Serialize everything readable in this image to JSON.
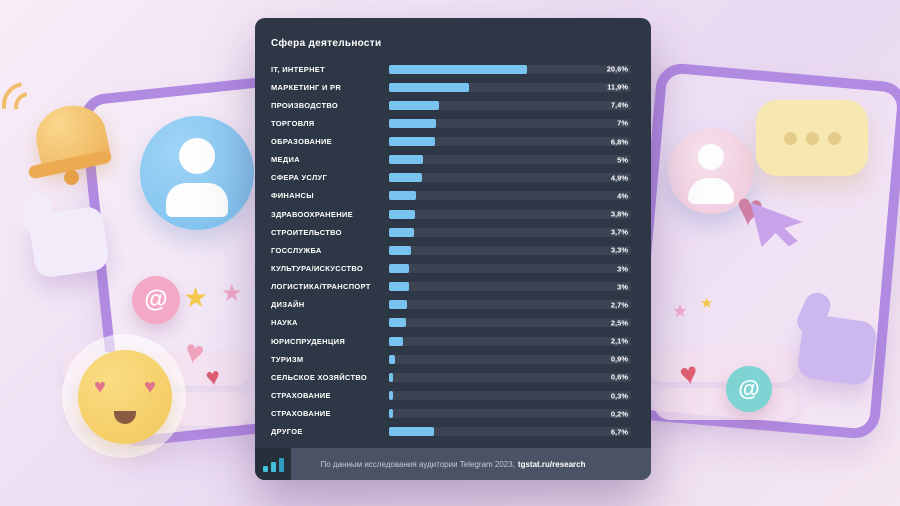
{
  "panel": {
    "title": "Сфера деятельности",
    "footer": {
      "text": "По данным исследования аудитории Telegram 2023,",
      "link": "tgstat.ru/research"
    }
  },
  "chart_data": {
    "type": "bar",
    "orientation": "horizontal",
    "title": "Сфера деятельности",
    "categories": [
      "IT, ИНТЕРНЕТ",
      "МАРКЕТИНГ И PR",
      "ПРОИЗВОДСТВО",
      "ТОРГОВЛЯ",
      "ОБРАЗОВАНИЕ",
      "МЕДИА",
      "СФЕРА УСЛУГ",
      "ФИНАНСЫ",
      "ЗДРАВООХРАНЕНИЕ",
      "СТРОИТЕЛЬСТВО",
      "ГОССЛУЖБА",
      "КУЛЬТУРА/ИСКУССТВО",
      "ЛОГИСТИКА/ТРАНСПОРТ",
      "ДИЗАЙН",
      "НАУКА",
      "ЮРИСПРУДЕНЦИЯ",
      "ТУРИЗМ",
      "СЕЛЬСКОЕ ХОЗЯЙСТВО",
      "СТРАХОВАНИЕ",
      "СТРАХОВАНИЕ",
      "ДРУГОЕ"
    ],
    "values": [
      20.6,
      11.9,
      7.4,
      7,
      6.8,
      5,
      4.9,
      4,
      3.8,
      3.7,
      3.3,
      3,
      3,
      2.7,
      2.5,
      2.1,
      0.9,
      0.6,
      0.3,
      0.2,
      6.7
    ],
    "value_labels": [
      "20,6%",
      "11,9%",
      "7,4%",
      "7%",
      "6,8%",
      "5%",
      "4,9%",
      "4%",
      "3,8%",
      "3,7%",
      "3,3%",
      "3%",
      "3%",
      "2,7%",
      "2,5%",
      "2,1%",
      "0,9%",
      "0,6%",
      "0,3%",
      "0,2%",
      "6,7%"
    ],
    "xlim": [
      0,
      36
    ],
    "bar_color": "#79c3f1",
    "track_color": "#3c4454",
    "grid": false,
    "legend": false,
    "source": "По данным исследования аудитории Telegram 2023, tgstat.ru/research"
  },
  "decorations": {
    "at_glyph": "@",
    "star_glyph": "★",
    "heart_glyph": "♥"
  },
  "colors": {
    "panel_bg": "#2e3745",
    "footer_bg": "#4a5365",
    "accent_blue": "#79c3f1",
    "logo_teal": "#45c0dc",
    "tablet_purple": "#b18ae2"
  }
}
